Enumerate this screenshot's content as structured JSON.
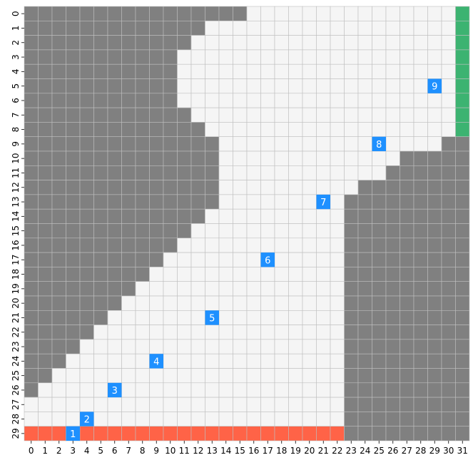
{
  "grid": {
    "cols": 32,
    "rows": 30,
    "legend": {
      "W": {
        "meaning": "wall",
        "color": "#808080"
      },
      "F": {
        "meaning": "floor",
        "color": "#f5f5f5"
      },
      "S": {
        "meaning": "start-row",
        "color": "#ff6347"
      },
      "G": {
        "meaning": "goal-column",
        "color": "#3cb371"
      }
    },
    "waypoint_color": "#1e90ff",
    "line_color": "#bfbfbf",
    "x_labels": [
      "0",
      "1",
      "2",
      "3",
      "4",
      "5",
      "6",
      "7",
      "8",
      "9",
      "10",
      "11",
      "12",
      "13",
      "14",
      "15",
      "16",
      "17",
      "18",
      "19",
      "20",
      "21",
      "22",
      "23",
      "24",
      "25",
      "26",
      "27",
      "28",
      "29",
      "30",
      "31"
    ],
    "y_labels": [
      "0",
      "1",
      "2",
      "3",
      "4",
      "5",
      "6",
      "7",
      "8",
      "9",
      "10",
      "11",
      "12",
      "13",
      "14",
      "15",
      "16",
      "17",
      "18",
      "19",
      "20",
      "21",
      "22",
      "23",
      "24",
      "25",
      "26",
      "27",
      "28",
      "29"
    ],
    "cells": [
      "WWWWWWWWWWWWWWWWFFFFFFFFFFFFFFFG",
      "WWWWWWWWWWWWWFFFFFFFFFFFFFFFFFFG",
      "WWWWWWWWWWWWFFFFFFFFFFFFFFFFFFFG",
      "WWWWWWWWWWWFFFFFFFFFFFFFFFFFFFFG",
      "WWWWWWWWWWWFFFFFFFFFFFFFFFFFFFFG",
      "WWWWWWWWWWWFFFFFFFFFFFFFFFFFFFFG",
      "WWWWWWWWWWWFFFFFFFFFFFFFFFFFFFFG",
      "WWWWWWWWWWWWFFFFFFFFFFFFFFFFFFFG",
      "WWWWWWWWWWWWWFFFFFFFFFFFFFFFFFFG",
      "WWWWWWWWWWWWWWFFFFFFFFFFFFFFFFWW",
      "WWWWWWWWWWWWWWFFFFFFFFFFFFFWWWWW",
      "WWWWWWWWWWWWWWFFFFFFFFFFFFWWWWWW",
      "WWWWWWWWWWWWWWFFFFFFFFFFWWWWWWWW",
      "WWWWWWWWWWWWWWFFFFFFFFFWWWWWWWWW",
      "WWWWWWWWWWWWWFFFFFFFFFFWWWWWWWWW",
      "WWWWWWWWWWWWFFFFFFFFFFFWWWWWWWWW",
      "WWWWWWWWWWWFFFFFFFFFFFFWWWWWWWWW",
      "WWWWWWWWWWFFFFFFFFFFFFFWWWWWWWWW",
      "WWWWWWWWWFFFFFFFFFFFFFFWWWWWWWWW",
      "WWWWWWWWFFFFFFFFFFFFFFFWWWWWWWWW",
      "WWWWWWWFFFFFFFFFFFFFFFFWWWWWWWWW",
      "WWWWWWFFFFFFFFFFFFFFFFFWWWWWWWWW",
      "WWWWWFFFFFFFFFFFFFFFFFFWWWWWWWWW",
      "WWWWFFFFFFFFFFFFFFFFFFFWWWWWWWWW",
      "WWWFFFFFFFFFFFFFFFFFFFFWWWWWWWWW",
      "WWFFFFFFFFFFFFFFFFFFFFFWWWWWWWWW",
      "WFFFFFFFFFFFFFFFFFFFFFFWWWWWWWWW",
      "FFFFFFFFFFFFFFFFFFFFFFFWWWWWWWWW",
      "FFFFFFFFFFFFFFFFFFFFFFFWWWWWWWWW",
      "SSSSSSSSSSSSSSSSSSSSSSSWWWWWWWWW"
    ],
    "waypoints": [
      {
        "label": "1",
        "col": 3,
        "row": 29
      },
      {
        "label": "2",
        "col": 4,
        "row": 28
      },
      {
        "label": "3",
        "col": 6,
        "row": 26
      },
      {
        "label": "4",
        "col": 9,
        "row": 24
      },
      {
        "label": "5",
        "col": 13,
        "row": 21
      },
      {
        "label": "6",
        "col": 17,
        "row": 17
      },
      {
        "label": "7",
        "col": 21,
        "row": 13
      },
      {
        "label": "8",
        "col": 25,
        "row": 9
      },
      {
        "label": "9",
        "col": 29,
        "row": 5
      }
    ]
  }
}
